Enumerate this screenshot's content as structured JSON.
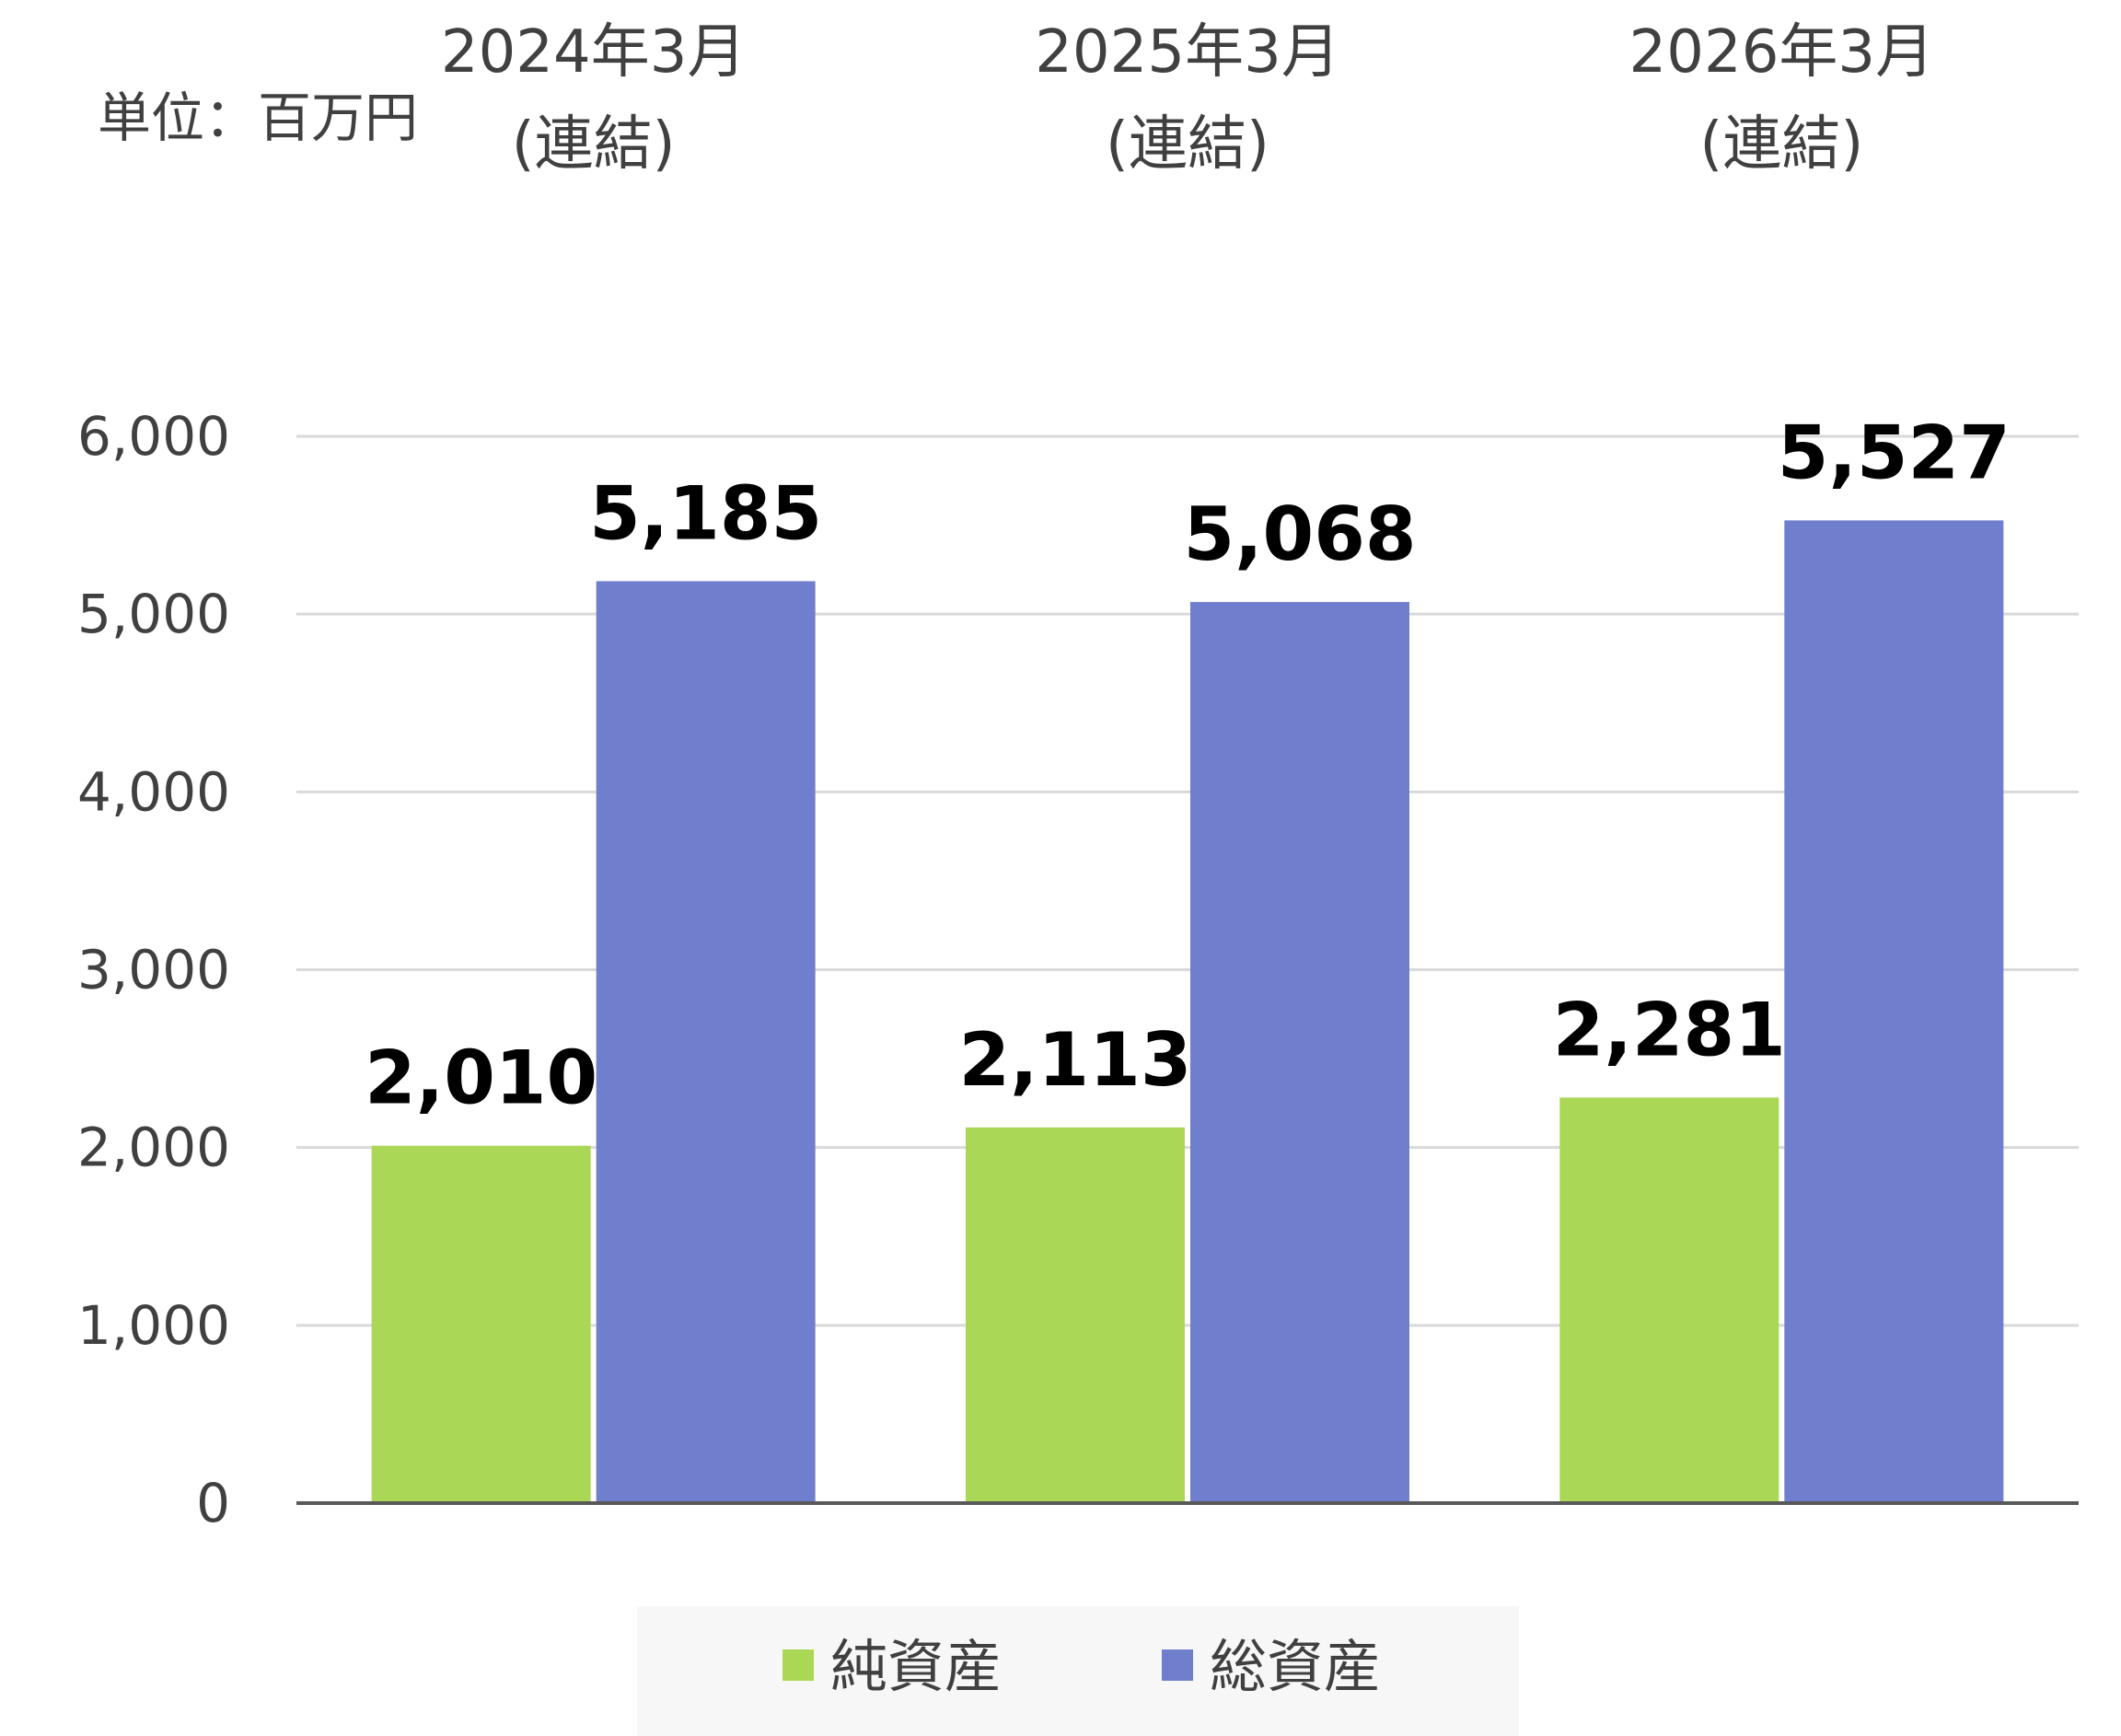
{
  "unit_label": "単位：百万円",
  "colors": {
    "net_assets": "#aad756",
    "total_assets": "#707fcd",
    "gridline": "#d9d9d9",
    "axis": "#595959",
    "legend_bg": "#f7f7f7"
  },
  "chart_data": {
    "type": "bar",
    "categories": [
      [
        "2024年3月",
        "(連結)"
      ],
      [
        "2025年3月",
        "(連結)"
      ],
      [
        "2026年3月",
        "(連結)"
      ]
    ],
    "series": [
      {
        "name": "純資産",
        "values": [
          2010,
          2113,
          2281
        ],
        "labels": [
          "2,010",
          "2,113",
          "2,281"
        ],
        "color": "#aad756"
      },
      {
        "name": "総資産",
        "values": [
          5185,
          5068,
          5527
        ],
        "labels": [
          "5,185",
          "5,068",
          "5,527"
        ],
        "color": "#707fcd"
      }
    ],
    "ylim": [
      0,
      6000
    ],
    "yticks": [
      0,
      1000,
      2000,
      3000,
      4000,
      5000,
      6000
    ],
    "ytick_labels": [
      "0",
      "1,000",
      "2,000",
      "3,000",
      "4,000",
      "5,000",
      "6,000"
    ],
    "grid": true,
    "legend": "bottom",
    "xaxis_position": "top"
  }
}
